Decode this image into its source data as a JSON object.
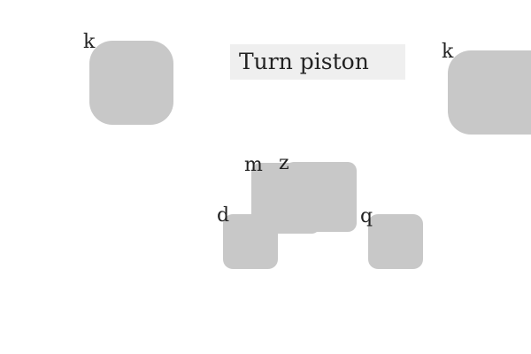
{
  "instruction": "Turn piston",
  "buttons": [
    {
      "key": "k"
    },
    {
      "key": "k"
    },
    {
      "key": "m"
    },
    {
      "key": "z"
    },
    {
      "key": "d"
    },
    {
      "key": "q"
    }
  ],
  "colors": {
    "background": "#ffffff",
    "button_fill": "#c8c8c8",
    "instruction_fill": "#efefef",
    "text": "#222222"
  }
}
